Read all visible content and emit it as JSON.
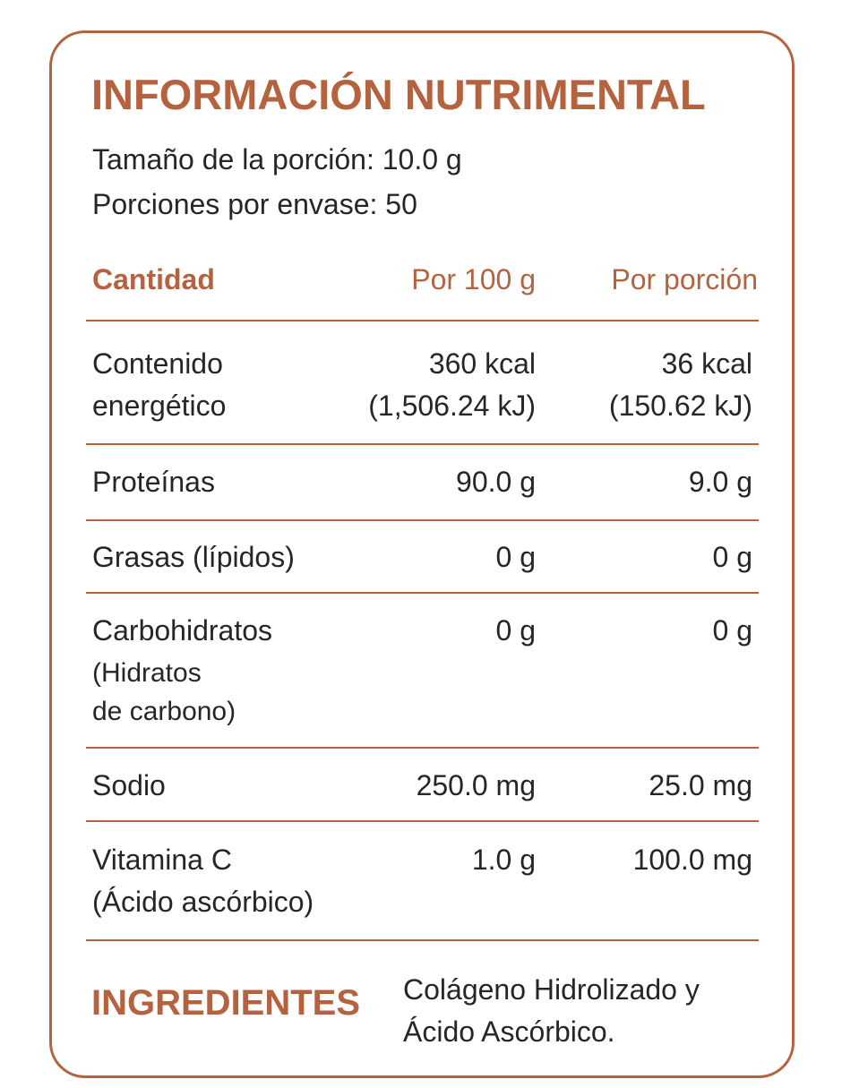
{
  "label": {
    "title": "INFORMACIÓN NUTRIMENTAL",
    "serving_size": "Tamaño de la porción: 10.0 g",
    "servings_per_container": "Porciones por envase: 50"
  },
  "table": {
    "headers": [
      "Cantidad",
      "Por 100 g",
      "Por porción"
    ],
    "rows": [
      {
        "name_lines": [
          "Contenido",
          "energético"
        ],
        "per100_lines": [
          "360 kcal",
          "(1,506.24 kJ)"
        ],
        "perserving_lines": [
          "36 kcal",
          "(150.62 kJ)"
        ]
      },
      {
        "name_lines": [
          "Proteínas"
        ],
        "per100_lines": [
          "90.0 g"
        ],
        "perserving_lines": [
          "9.0 g"
        ]
      },
      {
        "name_lines": [
          "Grasas (lípidos)"
        ],
        "per100_lines": [
          "0 g"
        ],
        "perserving_lines": [
          "0 g"
        ]
      },
      {
        "name_lines": [
          "Carbohidratos",
          "(Hidratos",
          "de carbono)"
        ],
        "per100_lines": [
          "0 g"
        ],
        "perserving_lines": [
          "0 g"
        ]
      },
      {
        "name_lines": [
          "Sodio"
        ],
        "per100_lines": [
          "250.0 mg"
        ],
        "perserving_lines": [
          "25.0 mg"
        ]
      },
      {
        "name_lines": [
          "Vitamina C",
          "(Ácido ascórbico)"
        ],
        "per100_lines": [
          "1.0 g"
        ],
        "perserving_lines": [
          "100.0 mg"
        ]
      }
    ]
  },
  "ingredients": {
    "title": "INGREDIENTES",
    "text_lines": [
      "Colágeno Hidrolizado y",
      "Ácido Ascórbico."
    ]
  },
  "colors": {
    "accent": "#b5623f",
    "text": "#262626",
    "background": "#ffffff"
  }
}
